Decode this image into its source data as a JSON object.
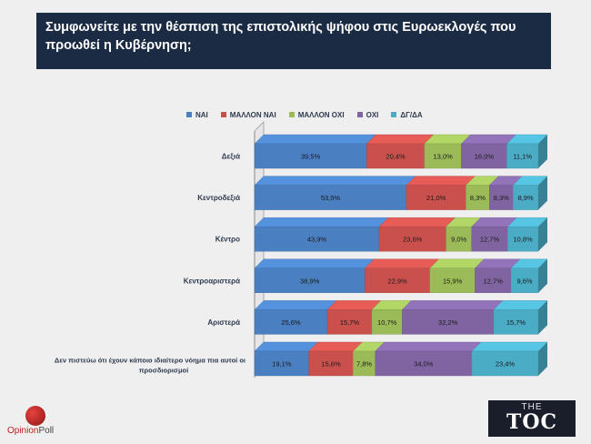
{
  "title": "Συμφωνείτε με την θέσπιση της επιστολικής ψήφου στις Ευρωεκλογές που προωθεί η Κυβέρνηση;",
  "branding": {
    "opinionpoll_prefix": "Opinion",
    "opinionpoll_suffix": "Poll",
    "toc_small": "THE",
    "toc_large": "TOC"
  },
  "colors": {
    "title_bg": "#1c2b44",
    "background": "#efeff0"
  },
  "chart_data": {
    "type": "bar",
    "orientation": "horizontal",
    "stacked": true,
    "percent_stacked": true,
    "xlim": [
      0,
      100
    ],
    "categories": [
      "Δεξιά",
      "Κεντροδεξιά",
      "Κέντρο",
      "Κεντροαριστερά",
      "Αριστερά",
      "Δεν πιστεύω ότι έχουν κάποιο ιδιαίτερο νόημα πια αυτοί οι προσδιορισμοί"
    ],
    "series": [
      {
        "name": "ΝΑΙ",
        "color": "#4a7fc1",
        "values": [
          39.5,
          53.5,
          43.9,
          38.9,
          25.6,
          19.1
        ]
      },
      {
        "name": "ΜΑΛΛΟΝ ΝΑΙ",
        "color": "#c9504c",
        "values": [
          20.4,
          21.0,
          23.6,
          22.9,
          15.7,
          15.6
        ]
      },
      {
        "name": "ΜΑΛΛΟΝ ΟΧΙ",
        "color": "#9bbb59",
        "values": [
          13.0,
          8.3,
          9.0,
          15.9,
          10.7,
          7.8
        ]
      },
      {
        "name": "ΟΧΙ",
        "color": "#8064a2",
        "values": [
          16.0,
          8.3,
          12.7,
          12.7,
          32.2,
          34.0
        ]
      },
      {
        "name": "ΔΓ/ΔΑ",
        "color": "#4bacc6",
        "values": [
          11.1,
          8.9,
          10.8,
          9.6,
          15.7,
          23.4
        ]
      }
    ],
    "data_labels": [
      [
        "39,5%",
        "20,4%",
        "13,0%",
        "16,0%",
        "11,1%"
      ],
      [
        "53,5%",
        "21,0%",
        "8,3%",
        "8,3%",
        "8,9%"
      ],
      [
        "43,9%",
        "23,6%",
        "9,0%",
        "12,7%",
        "10,8%"
      ],
      [
        "38,9%",
        "22,9%",
        "15,9%",
        "12,7%",
        "9,6%"
      ],
      [
        "25,6%",
        "15,7%",
        "10,7%",
        "32,2%",
        "15,7%"
      ],
      [
        "19,1%",
        "15,6%",
        "7,8%",
        "34,0%",
        "23,4%"
      ]
    ],
    "legend_position": "top",
    "grid": false
  }
}
